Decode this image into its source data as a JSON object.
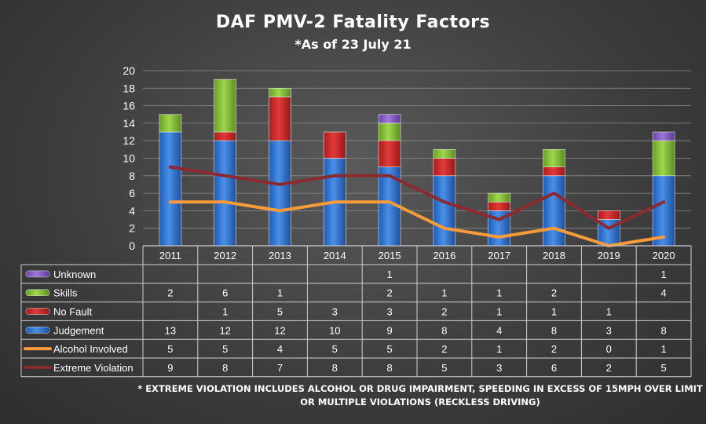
{
  "chart_data": {
    "type": "bar",
    "stacked": true,
    "title": "DAF PMV-2 Fatality Factors",
    "subtitle": "*As of 23 July 21",
    "categories": [
      "2011",
      "2012",
      "2013",
      "2014",
      "2015",
      "2016",
      "2017",
      "2018",
      "2019",
      "2020"
    ],
    "ylim": [
      0,
      20
    ],
    "yticks": [
      "0",
      "2",
      "4",
      "6",
      "8",
      "10",
      "12",
      "14",
      "16",
      "18",
      "20"
    ],
    "grid": true,
    "series": [
      {
        "name": "Judgement",
        "kind": "bar",
        "color": "#3b7bd6",
        "values": [
          13,
          12,
          12,
          10,
          9,
          8,
          4,
          8,
          3,
          8
        ]
      },
      {
        "name": "No Fault",
        "kind": "bar",
        "color": "#d42c2c",
        "values": [
          null,
          1,
          5,
          3,
          3,
          2,
          1,
          1,
          1,
          null
        ]
      },
      {
        "name": "Skills",
        "kind": "bar",
        "color": "#8cc63e",
        "values": [
          2,
          6,
          1,
          null,
          2,
          1,
          1,
          2,
          null,
          4
        ]
      },
      {
        "name": "Unknown",
        "kind": "bar",
        "color": "#8a62c8",
        "values": [
          null,
          null,
          null,
          null,
          1,
          null,
          null,
          null,
          null,
          1
        ]
      },
      {
        "name": "Alcohol Involved",
        "kind": "line",
        "color": "#f79b3b",
        "values": [
          5,
          5,
          4,
          5,
          5,
          2,
          1,
          2,
          0,
          1
        ]
      },
      {
        "name": "Extreme Violation",
        "kind": "line",
        "color": "#8b2a2f",
        "values": [
          9,
          8,
          7,
          8,
          8,
          5,
          3,
          6,
          2,
          5
        ]
      }
    ],
    "table_order": [
      "Unknown",
      "Skills",
      "No Fault",
      "Judgement",
      "Alcohol Involved",
      "Extreme Violation"
    ],
    "footnote": "* EXTREME VIOLATION INCLUDES ALCOHOL OR DRUG IMPAIRMENT, SPEEDING IN EXCESS OF 15MPH OVER LIMIT OR MULTIPLE VIOLATIONS (RECKLESS DRIVING)"
  }
}
